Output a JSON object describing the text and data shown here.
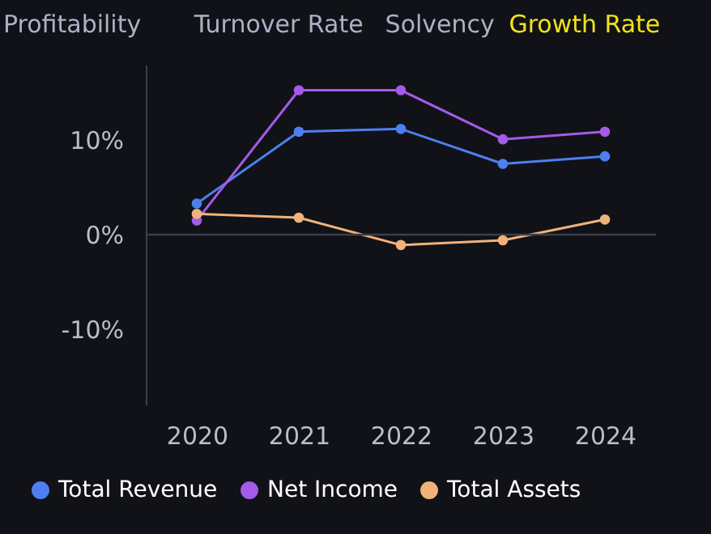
{
  "chart_data": {
    "type": "line",
    "annotations": [
      "Profitability",
      "Turnover Rate",
      "Solvency",
      "Growth Rate"
    ],
    "categories": [
      "2020",
      "2021",
      "2022",
      "2023",
      "2024"
    ],
    "series": [
      {
        "name": "Total Revenue",
        "color": "#4d7ff0",
        "values": [
          3.3,
          10.9,
          11.2,
          7.5,
          8.3
        ]
      },
      {
        "name": "Net Income",
        "color": "#a35be8",
        "values": [
          1.5,
          15.3,
          15.3,
          10.1,
          10.9
        ]
      },
      {
        "name": "Total Assets",
        "color": "#f0b27a",
        "values": [
          2.2,
          1.8,
          -1.1,
          -0.6,
          1.6
        ]
      }
    ],
    "ylim": [
      -18,
      18
    ],
    "yticks": [
      {
        "value": -10,
        "label": "-10%"
      },
      {
        "value": 0,
        "label": "0%"
      },
      {
        "value": 10,
        "label": "10%"
      }
    ],
    "ref_lines": [
      {
        "axis": "y",
        "value": 0,
        "color": "#3a3f4a"
      }
    ],
    "grid": false,
    "legend": "bottom",
    "marker": "circle",
    "line_style": "solid"
  }
}
